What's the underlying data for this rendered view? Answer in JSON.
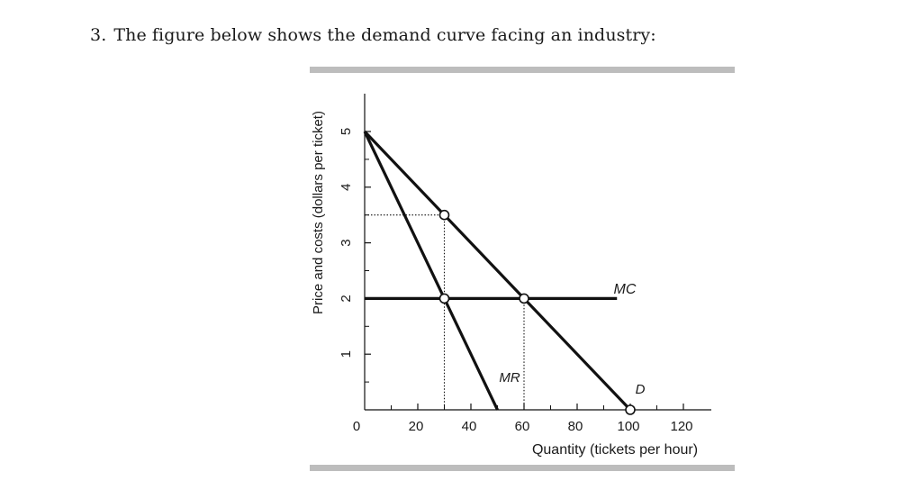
{
  "question": {
    "number": "3.",
    "text": "The figure below shows the demand curve facing an industry:"
  },
  "chart_data": {
    "type": "line",
    "ylabel": "Price and costs (dollars per ticket)",
    "xlabel": "Quantity (tickets per hour)",
    "origin_label": "0",
    "xlim": [
      0,
      130
    ],
    "ylim": [
      0,
      6
    ],
    "x_ticks": [
      20,
      40,
      60,
      80,
      100,
      120
    ],
    "x_tick_labels": [
      "20",
      "40",
      "60",
      "80",
      "100",
      "120"
    ],
    "x_minor_ticks": [
      10,
      30,
      50,
      70,
      90,
      110
    ],
    "y_ticks": [
      1,
      2,
      3,
      4,
      5
    ],
    "y_tick_labels": [
      "1",
      "2",
      "3",
      "4",
      "5"
    ],
    "y_minor_ticks": [
      0.5,
      1.5,
      2.5,
      3.5,
      4.5
    ],
    "series": [
      {
        "name": "D",
        "x": [
          0,
          100
        ],
        "y": [
          5,
          0
        ]
      },
      {
        "name": "MR",
        "x": [
          0,
          50
        ],
        "y": [
          5,
          0
        ]
      },
      {
        "name": "MC",
        "x": [
          0,
          95
        ],
        "y": [
          2,
          2
        ]
      }
    ],
    "points": [
      {
        "x": 30,
        "y": 3.5
      },
      {
        "x": 30,
        "y": 2
      },
      {
        "x": 60,
        "y": 2
      },
      {
        "x": 100,
        "y": 0
      }
    ],
    "guides": [
      {
        "from": [
          0,
          3.5
        ],
        "to": [
          30,
          3.5
        ]
      },
      {
        "from": [
          30,
          3.5
        ],
        "to": [
          30,
          0
        ]
      },
      {
        "from": [
          60,
          2
        ],
        "to": [
          60,
          0
        ]
      }
    ],
    "colors": {
      "lines": "#111111",
      "frame_bars": "#bdbdbd"
    }
  }
}
